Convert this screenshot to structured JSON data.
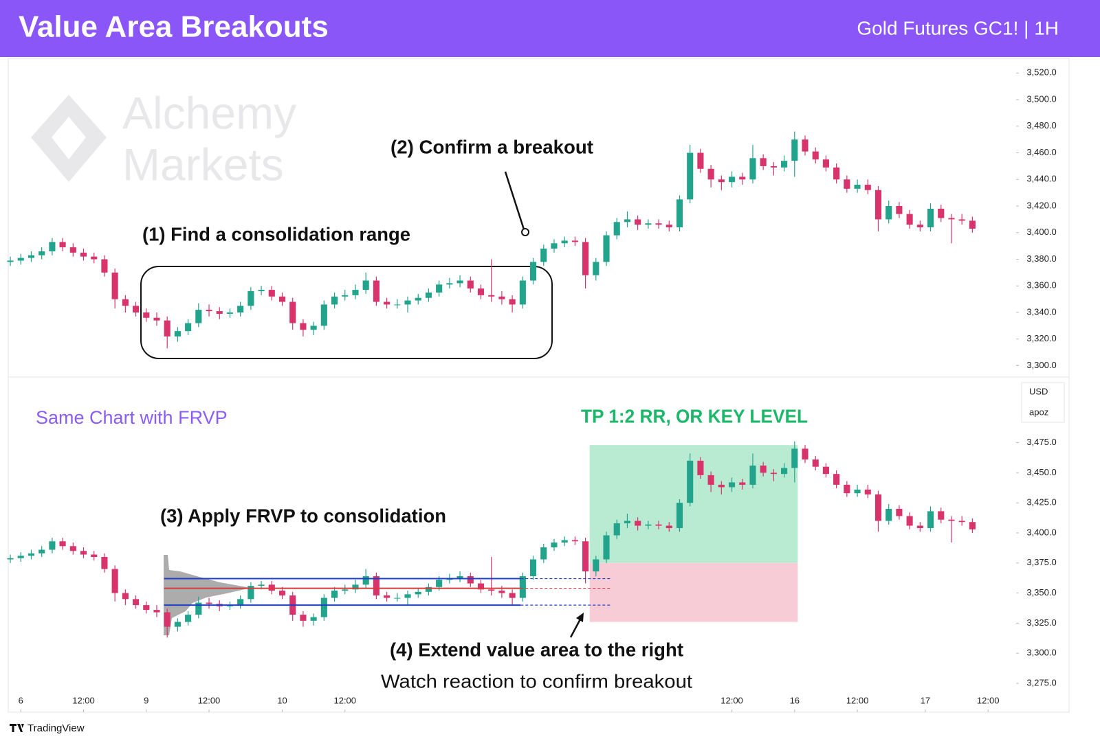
{
  "header": {
    "title": "Value Area Breakouts",
    "subtitle": "Gold Futures GC1! | 1H"
  },
  "watermark": [
    "Alchemy",
    "Markets"
  ],
  "currency": "USD",
  "user": "apoz",
  "footer": "TradingView",
  "chart_data": [
    {
      "type": "candlestick",
      "up_color": "#22a38c",
      "down_color": "#d8336a",
      "annotations": [
        "(1) Find a consolidation range",
        "(2) Confirm a breakout"
      ],
      "xlim": [
        -0.2,
        95
      ],
      "xticks": [
        {
          "value": 1,
          "label": "6"
        },
        {
          "value": 7,
          "label": "12:00"
        },
        {
          "value": 13,
          "label": "9"
        },
        {
          "value": 19,
          "label": "12:00"
        },
        {
          "value": 26,
          "label": "10"
        },
        {
          "value": 32,
          "label": "12:00"
        },
        {
          "value": 69,
          "label": "12:00"
        },
        {
          "value": 75,
          "label": "16"
        },
        {
          "value": 81,
          "label": "12:00"
        },
        {
          "value": 87.5,
          "label": "17"
        },
        {
          "value": 93.5,
          "label": "12:00"
        }
      ],
      "ylim": [
        3292,
        3531
      ],
      "yticks": [
        {
          "value": 3300,
          "label": "3,300.0"
        },
        {
          "value": 3320,
          "label": "3,320.0"
        },
        {
          "value": 3340,
          "label": "3,340.0"
        },
        {
          "value": 3360,
          "label": "3,360.0"
        },
        {
          "value": 3380,
          "label": "3,380.0"
        },
        {
          "value": 3400,
          "label": "3,400.0"
        },
        {
          "value": 3420,
          "label": "3,420.0"
        },
        {
          "value": 3440,
          "label": "3,440.0"
        },
        {
          "value": 3460,
          "label": "3,460.0"
        },
        {
          "value": 3480,
          "label": "3,480.0"
        },
        {
          "value": 3500,
          "label": "3,500.0"
        },
        {
          "value": 3520,
          "label": "3,520.0"
        }
      ],
      "ohlc": [
        [
          3378,
          3382,
          3375,
          3379
        ],
        [
          3379,
          3384,
          3376,
          3381
        ],
        [
          3381,
          3386,
          3378,
          3383
        ],
        [
          3383,
          3389,
          3380,
          3386
        ],
        [
          3386,
          3396,
          3383,
          3393
        ],
        [
          3393,
          3396,
          3386,
          3389
        ],
        [
          3389,
          3392,
          3382,
          3385
        ],
        [
          3385,
          3388,
          3379,
          3382
        ],
        [
          3382,
          3385,
          3377,
          3380
        ],
        [
          3380,
          3383,
          3367,
          3370
        ],
        [
          3370,
          3373,
          3343,
          3350
        ],
        [
          3350,
          3353,
          3340,
          3345
        ],
        [
          3345,
          3348,
          3337,
          3340
        ],
        [
          3340,
          3343,
          3333,
          3336
        ],
        [
          3336,
          3340,
          3330,
          3334
        ],
        [
          3334,
          3337,
          3313,
          3322
        ],
        [
          3322,
          3329,
          3318,
          3326
        ],
        [
          3326,
          3335,
          3323,
          3332
        ],
        [
          3332,
          3347,
          3329,
          3342
        ],
        [
          3342,
          3346,
          3337,
          3341
        ],
        [
          3341,
          3344,
          3335,
          3339
        ],
        [
          3339,
          3343,
          3336,
          3340
        ],
        [
          3340,
          3348,
          3337,
          3345
        ],
        [
          3345,
          3359,
          3342,
          3356
        ],
        [
          3356,
          3360,
          3353,
          3357
        ],
        [
          3357,
          3360,
          3349,
          3352
        ],
        [
          3352,
          3355,
          3345,
          3348
        ],
        [
          3348,
          3351,
          3327,
          3332
        ],
        [
          3332,
          3335,
          3322,
          3327
        ],
        [
          3327,
          3333,
          3323,
          3330
        ],
        [
          3330,
          3349,
          3327,
          3346
        ],
        [
          3346,
          3355,
          3343,
          3352
        ],
        [
          3352,
          3357,
          3349,
          3353
        ],
        [
          3353,
          3361,
          3350,
          3357
        ],
        [
          3357,
          3370,
          3354,
          3364
        ],
        [
          3364,
          3367,
          3345,
          3348
        ],
        [
          3348,
          3351,
          3343,
          3346
        ],
        [
          3346,
          3350,
          3343,
          3346
        ],
        [
          3346,
          3352,
          3340,
          3349
        ],
        [
          3349,
          3354,
          3346,
          3351
        ],
        [
          3351,
          3358,
          3348,
          3355
        ],
        [
          3355,
          3364,
          3352,
          3361
        ],
        [
          3361,
          3366,
          3358,
          3362
        ],
        [
          3362,
          3368,
          3359,
          3364
        ],
        [
          3364,
          3367,
          3355,
          3358
        ],
        [
          3358,
          3361,
          3350,
          3353
        ],
        [
          3353,
          3380,
          3348,
          3352
        ],
        [
          3352,
          3356,
          3346,
          3350
        ],
        [
          3350,
          3353,
          3340,
          3346
        ],
        [
          3346,
          3367,
          3343,
          3364
        ],
        [
          3364,
          3381,
          3361,
          3378
        ],
        [
          3378,
          3391,
          3375,
          3388
        ],
        [
          3388,
          3395,
          3385,
          3392
        ],
        [
          3392,
          3397,
          3389,
          3394
        ],
        [
          3394,
          3397,
          3390,
          3393
        ],
        [
          3393,
          3396,
          3358,
          3368
        ],
        [
          3368,
          3381,
          3364,
          3378
        ],
        [
          3378,
          3401,
          3375,
          3398
        ],
        [
          3398,
          3411,
          3395,
          3408
        ],
        [
          3408,
          3416,
          3404,
          3410
        ],
        [
          3410,
          3413,
          3402,
          3406
        ],
        [
          3406,
          3410,
          3403,
          3407
        ],
        [
          3407,
          3410,
          3403,
          3406
        ],
        [
          3406,
          3409,
          3401,
          3404
        ],
        [
          3404,
          3428,
          3401,
          3425
        ],
        [
          3425,
          3466,
          3422,
          3460
        ],
        [
          3460,
          3463,
          3445,
          3448
        ],
        [
          3448,
          3451,
          3434,
          3440
        ],
        [
          3440,
          3443,
          3432,
          3438
        ],
        [
          3438,
          3446,
          3434,
          3442
        ],
        [
          3442,
          3445,
          3436,
          3440
        ],
        [
          3440,
          3466,
          3437,
          3456
        ],
        [
          3456,
          3459,
          3447,
          3450
        ],
        [
          3450,
          3453,
          3443,
          3449
        ],
        [
          3449,
          3458,
          3446,
          3454
        ],
        [
          3454,
          3476,
          3442,
          3470
        ],
        [
          3470,
          3473,
          3458,
          3461
        ],
        [
          3461,
          3464,
          3452,
          3455
        ],
        [
          3455,
          3458,
          3446,
          3449
        ],
        [
          3449,
          3452,
          3437,
          3440
        ],
        [
          3440,
          3443,
          3430,
          3433
        ],
        [
          3433,
          3440,
          3430,
          3436
        ],
        [
          3436,
          3440,
          3429,
          3432
        ],
        [
          3432,
          3435,
          3401,
          3410
        ],
        [
          3410,
          3424,
          3407,
          3420
        ],
        [
          3420,
          3423,
          3411,
          3414
        ],
        [
          3414,
          3417,
          3403,
          3406
        ],
        [
          3406,
          3409,
          3401,
          3404
        ],
        [
          3404,
          3422,
          3401,
          3418
        ],
        [
          3418,
          3421,
          3408,
          3411
        ],
        [
          3411,
          3414,
          3392,
          3410
        ],
        [
          3410,
          3414,
          3406,
          3409
        ],
        [
          3409,
          3412,
          3400,
          3403
        ]
      ]
    },
    {
      "type": "candlestick",
      "title": "Same Chart with FRVP",
      "tp_label": "TP 1:2 RR, OR KEY LEVEL",
      "annotations": [
        "(3) Apply FRVP to consolidation",
        "(4) Extend value area to the right",
        "Watch reaction to confirm breakout"
      ],
      "ylim": [
        3251,
        3529
      ],
      "yticks": [
        {
          "value": 3275,
          "label": "3,275.0"
        },
        {
          "value": 3300,
          "label": "3,300.0"
        },
        {
          "value": 3325,
          "label": "3,325.0"
        },
        {
          "value": 3350,
          "label": "3,350.0"
        },
        {
          "value": 3375,
          "label": "3,375.0"
        },
        {
          "value": 3400,
          "label": "3,400.0"
        },
        {
          "value": 3425,
          "label": "3,425.0"
        },
        {
          "value": 3450,
          "label": "3,450.0"
        },
        {
          "value": 3475,
          "label": "3,475.0"
        }
      ],
      "take_profit": {
        "x_range": [
          55.4,
          75.3
        ],
        "top": 3473,
        "bottom": 3375,
        "color": "#b8ebd2"
      },
      "stop_loss": {
        "x_range": [
          55.4,
          75.3
        ],
        "top": 3375,
        "bottom": 3326,
        "color": "#f8ccd6"
      },
      "value_area": {
        "x_range": [
          14.7,
          48.8
        ],
        "extend_to": 57.4,
        "vah": 3362,
        "poc": 3354,
        "val": 3340,
        "edge_color": "#1f3fc8",
        "poc_color": "#d83a3a"
      }
    }
  ]
}
